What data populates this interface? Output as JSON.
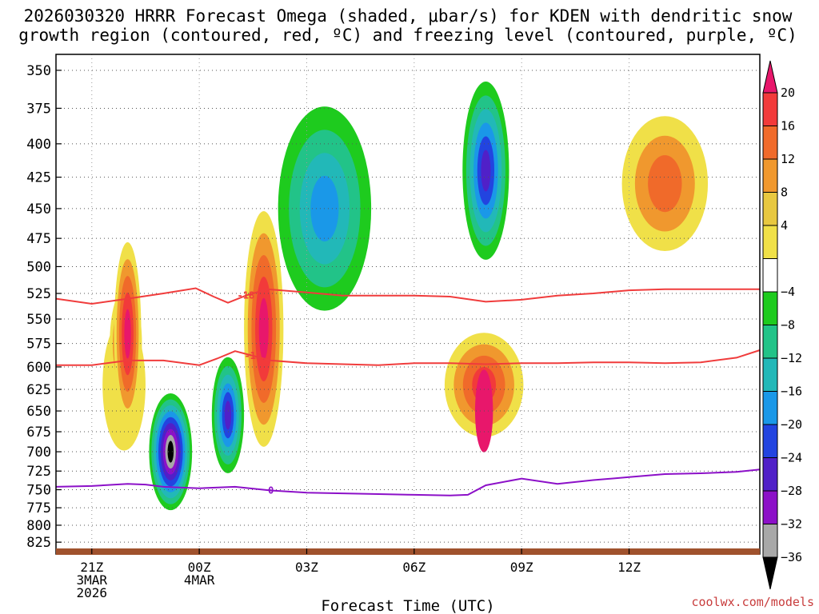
{
  "title_line1": "2026030320 HRRR Forecast Omega (shaded, μbar/s) for KDEN with dendritic snow",
  "title_line2": "growth region (contoured, red, ºC) and freezing level (contoured, purple, ºC)",
  "xlabel": "Forecast Time (UTC)",
  "credit": "coolwx.com/models",
  "chart_data": {
    "type": "heatmap",
    "title": "2026030320 HRRR Forecast Omega (shaded, μbar/s) for KDEN with dendritic snow growth region (contoured, red, ºC) and freezing level (contoured, purple, ºC)",
    "xlabel": "Forecast Time (UTC)",
    "ylabel": "",
    "xlim": [
      20,
      39.65
    ],
    "ylim": [
      843,
      340
    ],
    "y_scale": "log-pressure",
    "grid": true,
    "y_ticks": [
      350,
      375,
      400,
      425,
      450,
      475,
      500,
      525,
      550,
      575,
      600,
      625,
      650,
      675,
      700,
      725,
      750,
      775,
      800,
      825
    ],
    "x_ticks": [
      {
        "h": 21,
        "lines": [
          "21Z",
          "3MAR",
          "2026"
        ]
      },
      {
        "h": 24,
        "lines": [
          "00Z",
          "4MAR"
        ]
      },
      {
        "h": 27,
        "lines": [
          "03Z"
        ]
      },
      {
        "h": 30,
        "lines": [
          "06Z"
        ]
      },
      {
        "h": 33,
        "lines": [
          "09Z"
        ]
      },
      {
        "h": 36,
        "lines": [
          "12Z"
        ]
      }
    ],
    "colorbar": {
      "levels": [
        "20",
        "16",
        "12",
        "8",
        "4",
        "−4",
        "−8",
        "−12",
        "−16",
        "−20",
        "−24",
        "−28",
        "−32",
        "−36"
      ],
      "colors": [
        "#e8176b",
        "#f23a3a",
        "#f06a2a",
        "#f0982e",
        "#e8c840",
        "#f0e048",
        "#ffffff",
        "#1ecb1e",
        "#22c388",
        "#22b8b8",
        "#1a98e8",
        "#2244e0",
        "#5020c8",
        "#8c10c8",
        "#a8a8a8",
        "#000000"
      ]
    },
    "omega_features": [
      {
        "name": "yellow-band-2130",
        "t": 21.9,
        "p": 620,
        "rx": 0.6,
        "rp": 140,
        "levels": [
          4
        ]
      },
      {
        "name": "max-2130",
        "t": 21.95,
        "p": 575,
        "rx": 0.45,
        "rp": 110,
        "levels": [
          4,
          8,
          12,
          16,
          20
        ]
      },
      {
        "name": "max-0200",
        "t": 22.0,
        "p": 565,
        "rx": 0.38,
        "rp": 180,
        "levels": [
          4,
          8,
          12,
          16,
          20
        ]
      },
      {
        "name": "max-0200-main",
        "t": 25.8,
        "p": 560,
        "rx": 0.55,
        "rp": 230,
        "levels": [
          4,
          8,
          12,
          16,
          20
        ]
      },
      {
        "name": "max-0800",
        "t": 31.95,
        "p": 620,
        "rx": 1.1,
        "rp": 110,
        "levels": [
          4,
          8,
          12,
          16
        ]
      },
      {
        "name": "max-0800-core",
        "t": 31.95,
        "p": 650,
        "rx": 0.25,
        "rp": 90,
        "levels": [
          20
        ]
      },
      {
        "name": "max-1300",
        "t": 37.0,
        "p": 430,
        "rx": 1.2,
        "rp": 100,
        "levels": [
          4,
          8,
          12
        ]
      },
      {
        "name": "min-2300",
        "t": 23.2,
        "p": 700,
        "rx": 0.6,
        "rp": 140,
        "levels": [
          -4,
          -8,
          -12,
          -16,
          -20,
          -24,
          -28,
          -32,
          -36
        ]
      },
      {
        "name": "min-0100",
        "t": 24.8,
        "p": 655,
        "rx": 0.45,
        "rp": 130,
        "levels": [
          -4,
          -8,
          -12,
          -16,
          -20,
          -24
        ]
      },
      {
        "name": "min-0800",
        "t": 32.0,
        "p": 420,
        "rx": 0.65,
        "rp": 130,
        "levels": [
          -4,
          -8,
          -12,
          -16,
          -20,
          -24
        ]
      },
      {
        "name": "min-0500",
        "t": 27.5,
        "p": 450,
        "rx": 1.3,
        "rp": 160,
        "levels": [
          -4,
          -8,
          -12,
          -16
        ]
      }
    ],
    "contours": [
      {
        "name": "-18C",
        "color": "#f03c3c",
        "label": "-18",
        "t": [
          20,
          21,
          22,
          23,
          23.9,
          24.4,
          24.8,
          25.3,
          25.9,
          27,
          28,
          29,
          30,
          31,
          32,
          33,
          34,
          35,
          36,
          37,
          38,
          39,
          39.65
        ],
        "p": [
          530,
          535,
          530,
          525,
          520,
          528,
          534,
          527,
          521,
          524,
          527,
          527,
          527,
          528,
          533,
          531,
          527,
          525,
          522,
          521,
          521,
          521,
          521
        ]
      },
      {
        "name": "-12C",
        "color": "#f03c3c",
        "label": "-12",
        "t": [
          20,
          21,
          22,
          23,
          24,
          24.5,
          25,
          25.5,
          26,
          27,
          28,
          29,
          30,
          31,
          32,
          33,
          34,
          35,
          36,
          37,
          38,
          39,
          39.65
        ],
        "p": [
          598,
          598,
          593,
          593,
          598,
          591,
          583,
          588,
          593,
          596,
          597,
          598,
          596,
          596,
          597,
          596,
          596,
          595,
          595,
          596,
          595,
          590,
          582
        ]
      },
      {
        "name": "0C-freezing-level",
        "color": "#8c10c8",
        "label": "0",
        "t": [
          20,
          21,
          22,
          22.5,
          23,
          24,
          25,
          26,
          27,
          28,
          29,
          30,
          31,
          31.5,
          32,
          33,
          34,
          35,
          36,
          37,
          38,
          39,
          39.65
        ],
        "p": [
          746,
          745,
          742,
          743,
          746,
          748,
          746,
          751,
          754,
          755,
          756,
          757,
          758,
          757,
          744,
          735,
          742,
          737,
          733,
          729,
          728,
          726,
          723
        ]
      }
    ]
  }
}
